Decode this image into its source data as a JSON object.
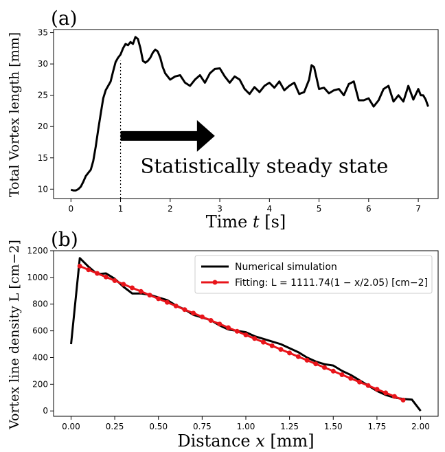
{
  "chart_data": [
    {
      "panel_label": "(a)",
      "type": "line",
      "xlabel": "Time t [s]",
      "ylabel": "Total Vortex length [mm]",
      "xlim": [
        -0.35,
        7.4
      ],
      "ylim": [
        8.5,
        35.5
      ],
      "xticks": [
        0,
        1,
        2,
        3,
        4,
        5,
        6,
        7
      ],
      "yticks": [
        10,
        15,
        20,
        25,
        30,
        35
      ],
      "grid": false,
      "series": [
        {
          "color": "#000000",
          "x": [
            0.0,
            0.05,
            0.1,
            0.15,
            0.2,
            0.25,
            0.3,
            0.35,
            0.4,
            0.45,
            0.5,
            0.55,
            0.6,
            0.65,
            0.7,
            0.75,
            0.8,
            0.85,
            0.9,
            0.95,
            1.0,
            1.05,
            1.1,
            1.15,
            1.2,
            1.25,
            1.3,
            1.35,
            1.4,
            1.45,
            1.5,
            1.55,
            1.6,
            1.65,
            1.7,
            1.75,
            1.8,
            1.85,
            1.9,
            2.0,
            2.1,
            2.2,
            2.3,
            2.4,
            2.5,
            2.6,
            2.7,
            2.8,
            2.9,
            3.0,
            3.1,
            3.2,
            3.3,
            3.4,
            3.5,
            3.6,
            3.7,
            3.8,
            3.9,
            4.0,
            4.1,
            4.2,
            4.3,
            4.4,
            4.5,
            4.6,
            4.7,
            4.8,
            4.85,
            4.9,
            5.0,
            5.1,
            5.2,
            5.3,
            5.4,
            5.5,
            5.6,
            5.7,
            5.8,
            5.9,
            6.0,
            6.1,
            6.2,
            6.3,
            6.4,
            6.5,
            6.6,
            6.7,
            6.8,
            6.9,
            7.0,
            7.05,
            7.1,
            7.15,
            7.2
          ],
          "y": [
            9.9,
            9.8,
            9.8,
            10.0,
            10.4,
            11.2,
            12.1,
            12.6,
            13.1,
            14.5,
            16.8,
            19.5,
            22.0,
            24.5,
            25.8,
            26.5,
            27.2,
            28.8,
            30.3,
            31.0,
            31.5,
            32.5,
            33.2,
            33.0,
            33.5,
            33.2,
            34.3,
            34.0,
            32.5,
            30.5,
            30.2,
            30.5,
            31.0,
            31.8,
            32.3,
            32.0,
            31.0,
            29.5,
            28.5,
            27.5,
            28.0,
            28.2,
            27.0,
            26.5,
            27.5,
            28.2,
            27.0,
            28.5,
            29.2,
            29.3,
            28.0,
            27.0,
            28.0,
            27.5,
            26.0,
            25.2,
            26.3,
            25.5,
            26.5,
            27.0,
            26.2,
            27.2,
            25.8,
            26.5,
            27.0,
            25.2,
            25.5,
            27.5,
            29.8,
            29.5,
            26.0,
            26.2,
            25.3,
            25.8,
            26.0,
            25.0,
            26.8,
            27.2,
            24.2,
            24.2,
            24.5,
            23.2,
            24.2,
            26.0,
            26.5,
            24.0,
            25.0,
            24.0,
            26.5,
            24.3,
            26.0,
            25.0,
            25.0,
            24.3,
            23.2
          ]
        }
      ],
      "annotations": [
        {
          "type": "vline",
          "x": 1.0,
          "from_y": 8.5,
          "to_y": 30.5,
          "style": "dotted"
        },
        {
          "type": "arrow",
          "from": [
            1.0,
            18.5
          ],
          "to": [
            2.9,
            18.5
          ],
          "color": "#000000"
        },
        {
          "type": "text",
          "text": "Statistically steady state",
          "x": 1.4,
          "y": 12.6
        }
      ]
    },
    {
      "panel_label": "(b)",
      "type": "line",
      "xlabel": "Distance x [mm]",
      "ylabel": "Vortex line density L [cm−2]",
      "xlim": [
        -0.1,
        2.1
      ],
      "ylim": [
        -40,
        1200
      ],
      "xticks": [
        0.0,
        0.25,
        0.5,
        0.75,
        1.0,
        1.25,
        1.5,
        1.75,
        2.0
      ],
      "xtick_labels": [
        "0.00",
        "0.25",
        "0.50",
        "0.75",
        "1.00",
        "1.25",
        "1.50",
        "1.75",
        "2.00"
      ],
      "yticks": [
        0,
        200,
        400,
        600,
        800,
        1000,
        1200
      ],
      "grid": false,
      "legend_position": "top-right",
      "series": [
        {
          "name": "Numerical simulation",
          "color": "#000000",
          "marker": "none",
          "x": [
            0.0,
            0.05,
            0.1,
            0.15,
            0.2,
            0.25,
            0.3,
            0.35,
            0.4,
            0.45,
            0.5,
            0.55,
            0.6,
            0.65,
            0.7,
            0.75,
            0.8,
            0.85,
            0.9,
            0.95,
            1.0,
            1.05,
            1.1,
            1.15,
            1.2,
            1.25,
            1.3,
            1.35,
            1.4,
            1.45,
            1.5,
            1.55,
            1.6,
            1.65,
            1.7,
            1.75,
            1.8,
            1.85,
            1.9,
            1.95,
            2.0
          ],
          "y": [
            500,
            1145,
            1080,
            1025,
            1030,
            990,
            930,
            880,
            880,
            870,
            850,
            830,
            790,
            760,
            720,
            700,
            680,
            640,
            610,
            600,
            590,
            560,
            540,
            520,
            500,
            470,
            440,
            400,
            370,
            350,
            340,
            300,
            270,
            230,
            190,
            150,
            120,
            100,
            90,
            85,
            0
          ]
        },
        {
          "name": "Fitting: L = 1111.74(1 − x/2.05) [cm−2]",
          "color": "#e8141a",
          "marker": "circle",
          "fit": {
            "a": 1111.74,
            "b": 2.05
          },
          "x": [
            0.05,
            0.1,
            0.15,
            0.2,
            0.25,
            0.3,
            0.35,
            0.4,
            0.45,
            0.5,
            0.55,
            0.6,
            0.65,
            0.7,
            0.75,
            0.8,
            0.85,
            0.9,
            0.95,
            1.0,
            1.05,
            1.1,
            1.15,
            1.2,
            1.25,
            1.3,
            1.35,
            1.4,
            1.45,
            1.5,
            1.55,
            1.6,
            1.65,
            1.7,
            1.75,
            1.8,
            1.85,
            1.9
          ]
        }
      ]
    }
  ]
}
